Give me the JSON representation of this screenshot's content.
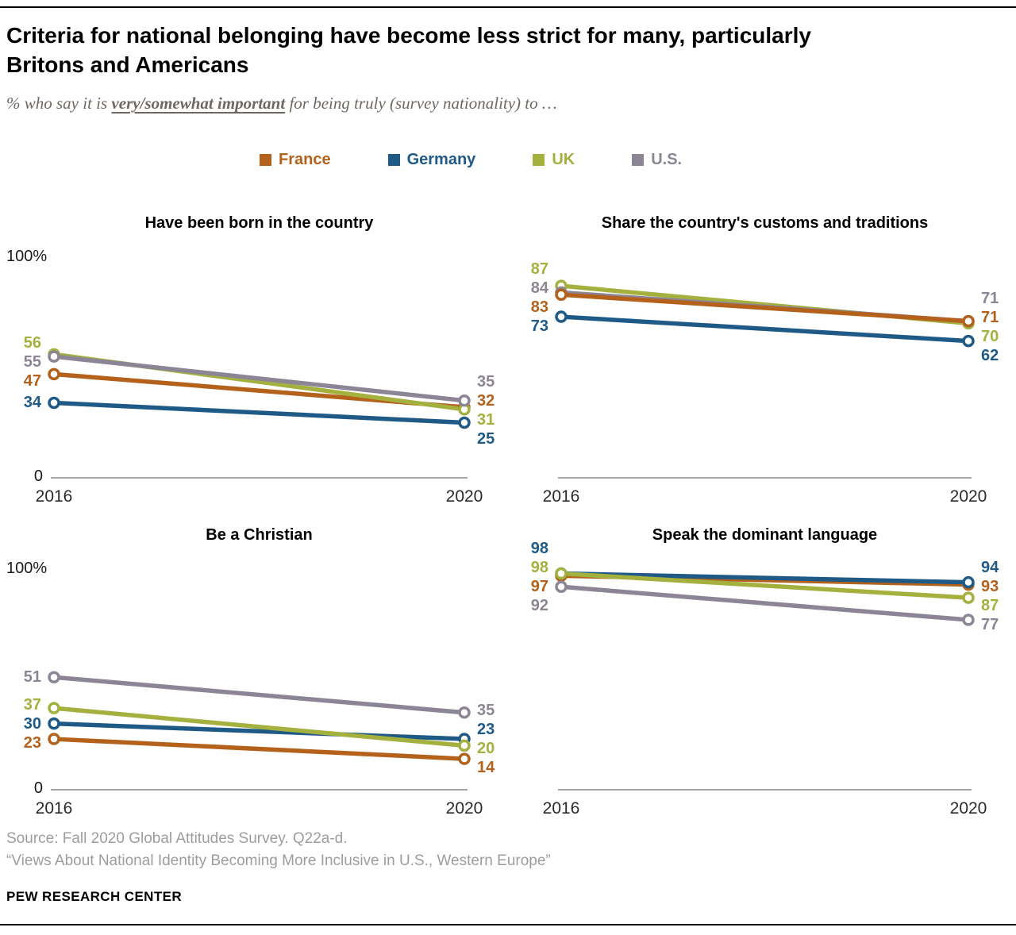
{
  "header": {
    "title": "Criteria for national belonging have become less strict for many, particularly\nBritons and Americans",
    "subtitle_prefix": "% who say it is ",
    "subtitle_emphasis": "very/somewhat important",
    "subtitle_suffix": " for being truly (survey nationality) to …"
  },
  "legend": [
    {
      "label": "France",
      "color": "#b3611b"
    },
    {
      "label": "Germany",
      "color": "#1f5a87"
    },
    {
      "label": "UK",
      "color": "#a4b13f"
    },
    {
      "label": "U.S.",
      "color": "#8c8596"
    }
  ],
  "chart_data": [
    {
      "type": "line",
      "title": "Have been born in the country",
      "x": [
        "2016",
        "2020"
      ],
      "ylim": [
        0,
        100
      ],
      "y_axis_top_label": "100%",
      "y_axis_bottom_label": "0",
      "series": [
        {
          "name": "France",
          "values": [
            47,
            32
          ]
        },
        {
          "name": "Germany",
          "values": [
            34,
            25
          ]
        },
        {
          "name": "UK",
          "values": [
            56,
            31
          ]
        },
        {
          "name": "U.S.",
          "values": [
            55,
            35
          ]
        }
      ]
    },
    {
      "type": "line",
      "title": "Share the country's customs and traditions",
      "x": [
        "2016",
        "2020"
      ],
      "ylim": [
        0,
        100
      ],
      "series": [
        {
          "name": "UK",
          "values": [
            87,
            70
          ]
        },
        {
          "name": "U.S.",
          "values": [
            84,
            71
          ]
        },
        {
          "name": "France",
          "values": [
            83,
            71
          ]
        },
        {
          "name": "Germany",
          "values": [
            73,
            62
          ]
        }
      ]
    },
    {
      "type": "line",
      "title": "Be a Christian",
      "x": [
        "2016",
        "2020"
      ],
      "ylim": [
        0,
        100
      ],
      "y_axis_top_label": "100%",
      "y_axis_bottom_label": "0",
      "series": [
        {
          "name": "France",
          "values": [
            23,
            14
          ]
        },
        {
          "name": "Germany",
          "values": [
            30,
            23
          ]
        },
        {
          "name": "UK",
          "values": [
            37,
            20
          ]
        },
        {
          "name": "U.S.",
          "values": [
            51,
            35
          ]
        }
      ]
    },
    {
      "type": "line",
      "title": "Speak the dominant language",
      "x": [
        "2016",
        "2020"
      ],
      "ylim": [
        0,
        100
      ],
      "series": [
        {
          "name": "France",
          "values": [
            97,
            93
          ]
        },
        {
          "name": "Germany",
          "values": [
            98,
            94
          ]
        },
        {
          "name": "UK",
          "values": [
            98,
            87
          ]
        },
        {
          "name": "U.S.",
          "values": [
            92,
            77
          ]
        }
      ]
    }
  ],
  "footer": {
    "source": "Source: Fall 2020 Global Attitudes Survey. Q22a-d.",
    "report": "“Views About National Identity Becoming More Inclusive in U.S., Western Europe”",
    "brand": "PEW RESEARCH CENTER"
  }
}
